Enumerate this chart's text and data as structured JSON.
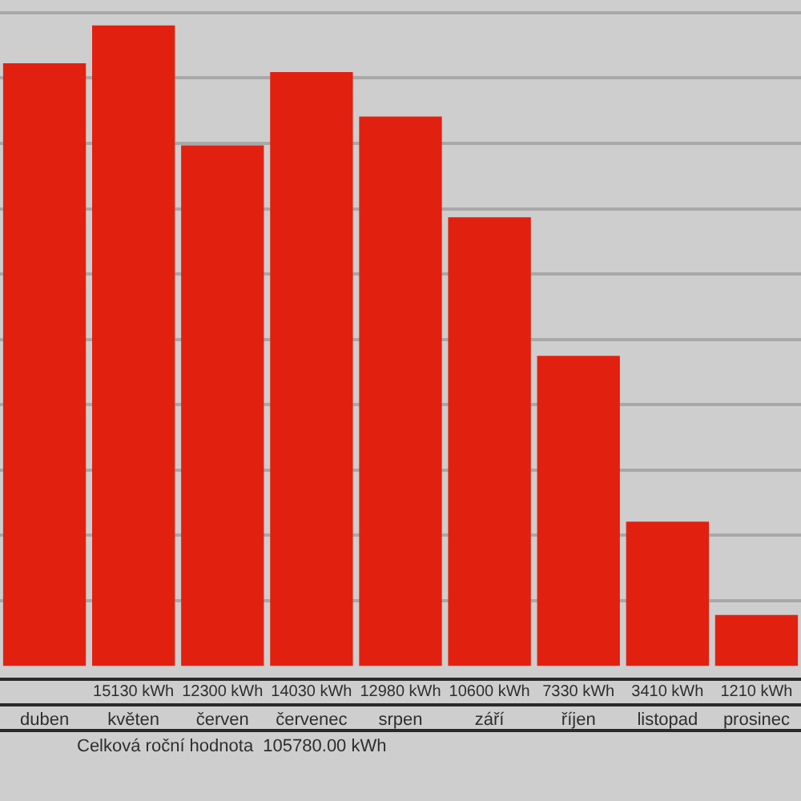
{
  "chart_data": {
    "type": "bar",
    "categories": [
      "duben",
      "květen",
      "červen",
      "červenec",
      "srpen",
      "září",
      "říjen",
      "listopad",
      "prosinec"
    ],
    "values": [
      14240,
      15130,
      12300,
      14030,
      12980,
      10600,
      7330,
      3410,
      1210
    ],
    "value_labels": [
      null,
      "15130 kWh",
      "12300 kWh",
      "14030 kWh",
      "12980 kWh",
      "10600 kWh",
      "7330 kWh",
      "3410 kWh",
      "1210 kWh"
    ],
    "color": "#e22010",
    "yticks": [
      {
        "value": 1540,
        "label": null
      },
      {
        "value": 3090,
        "label": null
      },
      {
        "value": 4630,
        "label": null
      },
      {
        "value": 6170,
        "label": null
      },
      {
        "value": 7720,
        "label": null
      },
      {
        "value": 9260,
        "label": null
      },
      {
        "value": 10800,
        "label": null
      },
      {
        "value": 12350,
        "label": null
      },
      {
        "value": 13890,
        "label": null
      },
      {
        "value": 15430,
        "label": null
      }
    ],
    "grid": "y",
    "tick_labels": "x",
    "annotations": [
      "Celková roční hodnota  105780.00 kWh"
    ]
  }
}
